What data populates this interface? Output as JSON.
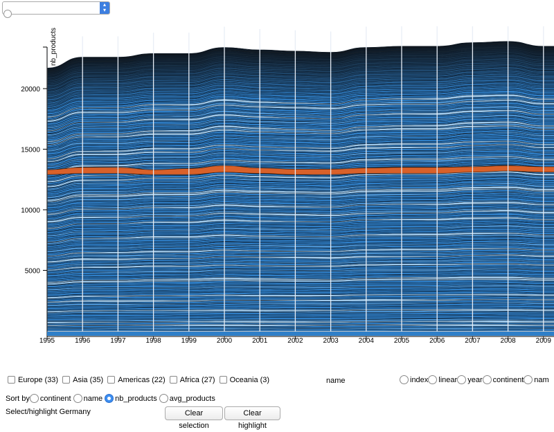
{
  "top_select": {
    "value": ""
  },
  "chart_data": {
    "type": "area",
    "stacked": true,
    "ylabel": "nb_products",
    "x": [
      1995,
      1996,
      1997,
      1998,
      1999,
      2000,
      2001,
      2002,
      2003,
      2004,
      2005,
      2006,
      2007,
      2008,
      2009
    ],
    "x_ticks": [
      "1995",
      "1996",
      "1997",
      "1998",
      "1999",
      "2000",
      "2001",
      "2002",
      "2003",
      "2004",
      "2005",
      "2006",
      "2007",
      "2008",
      "2009"
    ],
    "y_ticks": [
      "5000",
      "10000",
      "15000",
      "20000"
    ],
    "ylim": [
      0,
      24000
    ],
    "totals": [
      21700,
      22600,
      22600,
      22900,
      22900,
      23400,
      23200,
      23100,
      23000,
      23400,
      23500,
      23500,
      23800,
      23900,
      23500
    ],
    "highlight_band": {
      "bottom": [
        12900,
        13000,
        13000,
        12900,
        12900,
        13100,
        13000,
        12900,
        12900,
        13000,
        13000,
        13000,
        13100,
        13200,
        13100
      ],
      "top": [
        13300,
        13500,
        13500,
        13300,
        13400,
        13650,
        13450,
        13350,
        13350,
        13450,
        13500,
        13500,
        13550,
        13650,
        13550
      ],
      "color": "#d8612a"
    },
    "grid": true
  },
  "continents": [
    {
      "label": "Europe (33)"
    },
    {
      "label": "Asia (35)"
    },
    {
      "label": "Americas (22)"
    },
    {
      "label": "Africa (27)"
    },
    {
      "label": "Oceania (3)"
    }
  ],
  "name_label": "name",
  "scale_options": [
    {
      "label": "index"
    },
    {
      "label": "linear"
    },
    {
      "label": "year"
    },
    {
      "label": "continent"
    },
    {
      "label": "nam"
    }
  ],
  "sort": {
    "label": "Sort by",
    "options": [
      {
        "label": "continent"
      },
      {
        "label": "name"
      },
      {
        "label": "nb_products"
      },
      {
        "label": "avg_products"
      }
    ],
    "selected": "nb_products"
  },
  "highlight": {
    "label": "Select/highlight",
    "value": "Germany"
  },
  "buttons": {
    "clear_selection": "Clear selection",
    "clear_highlight": "Clear highlight"
  },
  "colors": {
    "fill": "#2f7fc8",
    "line": "#0b1a2a",
    "light": "#9ec8ea",
    "top_dark": "#101418"
  }
}
